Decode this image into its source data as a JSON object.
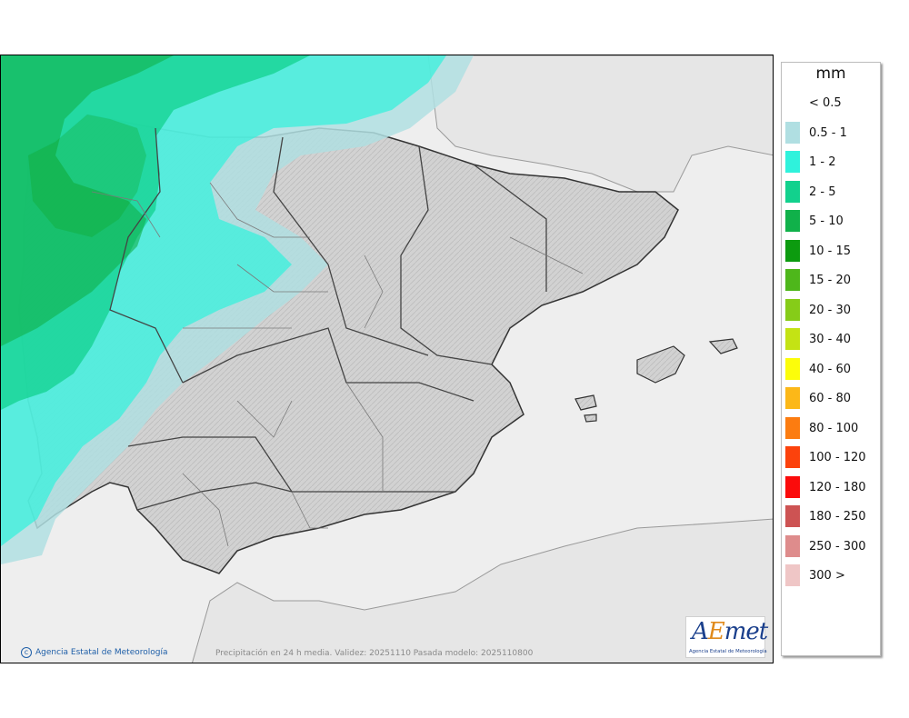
{
  "legend": {
    "unit": "mm",
    "items": [
      {
        "label": "< 0.5",
        "color": null
      },
      {
        "label": "0.5 - 1",
        "color": "#b0dfe2"
      },
      {
        "label": "1 - 2",
        "color": "#2ff2dc"
      },
      {
        "label": "2 - 5",
        "color": "#12d18d"
      },
      {
        "label": "5 - 10",
        "color": "#10b14a"
      },
      {
        "label": "10 - 15",
        "color": "#0c9b0f"
      },
      {
        "label": "15 - 20",
        "color": "#4eb71b"
      },
      {
        "label": "20 - 30",
        "color": "#86cc18"
      },
      {
        "label": "30 - 40",
        "color": "#c4e314"
      },
      {
        "label": "40 - 60",
        "color": "#fcfd0a"
      },
      {
        "label": "60 - 80",
        "color": "#fcb818"
      },
      {
        "label": "80 - 100",
        "color": "#fc7c10"
      },
      {
        "label": "100 - 120",
        "color": "#fc420c"
      },
      {
        "label": "120 - 180",
        "color": "#fb0b0b"
      },
      {
        "label": "180 - 250",
        "color": "#cd5353"
      },
      {
        "label": "250 - 300",
        "color": "#de8c8c"
      },
      {
        "label": "300 >",
        "color": "#efc6c6"
      }
    ]
  },
  "footer": {
    "credit": "Agencia Estatal de Meteorología",
    "validity": "Precipitación en 24 h media. Validez: 20251110 Pasada modelo: 2025110800"
  },
  "logo": {
    "text_a": "A",
    "text_e": "E",
    "text_met": "met",
    "subtitle": "Agencia Estatal de Meteorología"
  },
  "colors": {
    "sea": "#eeeeee",
    "land": "#cfcfcf",
    "border": "#444444",
    "region_line": "#7a7a7a"
  }
}
